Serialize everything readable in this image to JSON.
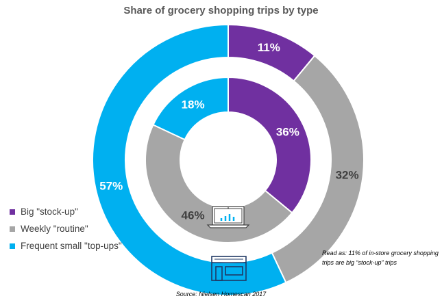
{
  "chart_data": {
    "type": "pie",
    "subtype": "nested-donut",
    "title": "Share of grocery shopping trips by type",
    "categories": [
      "Big \"stock-up\"",
      "Weekly \"routine\"",
      "Frequent small \"top-ups\""
    ],
    "colors": [
      "#7030a0",
      "#a6a6a6",
      "#00b0f0"
    ],
    "series": [
      {
        "ring": "outer",
        "icon": "store-icon",
        "values": [
          11,
          32,
          57
        ],
        "labels": [
          "11%",
          "32%",
          "57%"
        ]
      },
      {
        "ring": "inner",
        "icon": "laptop-chart-icon",
        "values": [
          36,
          46,
          18
        ],
        "labels": [
          "36%",
          "46%",
          "18%"
        ]
      }
    ],
    "legend_position": "left",
    "annotation": "Read as: 11% of in-store grocery shopping trips are big “stock-up” trips",
    "source": "Source: Nielsen Homescan 2017"
  }
}
